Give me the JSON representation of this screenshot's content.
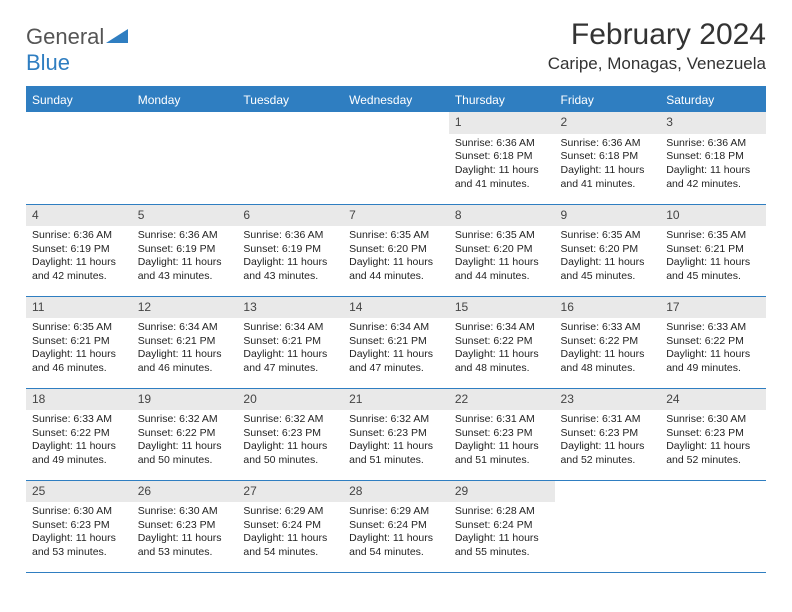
{
  "brand": {
    "part1": "General",
    "part2": "Blue"
  },
  "title": "February 2024",
  "location": "Caripe, Monagas, Venezuela",
  "style": {
    "header_bg": "#2f7ec1",
    "header_fg": "#ffffff",
    "daynum_bg": "#e9e9e9",
    "border_color": "#2f7ec1",
    "page_bg": "#ffffff",
    "body_font_size": 10.5,
    "title_font_size": 30,
    "location_font_size": 17
  },
  "day_headers": [
    "Sunday",
    "Monday",
    "Tuesday",
    "Wednesday",
    "Thursday",
    "Friday",
    "Saturday"
  ],
  "weeks": [
    [
      {
        "n": "",
        "sr": "",
        "ss": "",
        "dl": ""
      },
      {
        "n": "",
        "sr": "",
        "ss": "",
        "dl": ""
      },
      {
        "n": "",
        "sr": "",
        "ss": "",
        "dl": ""
      },
      {
        "n": "",
        "sr": "",
        "ss": "",
        "dl": ""
      },
      {
        "n": "1",
        "sr": "Sunrise: 6:36 AM",
        "ss": "Sunset: 6:18 PM",
        "dl": "Daylight: 11 hours and 41 minutes."
      },
      {
        "n": "2",
        "sr": "Sunrise: 6:36 AM",
        "ss": "Sunset: 6:18 PM",
        "dl": "Daylight: 11 hours and 41 minutes."
      },
      {
        "n": "3",
        "sr": "Sunrise: 6:36 AM",
        "ss": "Sunset: 6:18 PM",
        "dl": "Daylight: 11 hours and 42 minutes."
      }
    ],
    [
      {
        "n": "4",
        "sr": "Sunrise: 6:36 AM",
        "ss": "Sunset: 6:19 PM",
        "dl": "Daylight: 11 hours and 42 minutes."
      },
      {
        "n": "5",
        "sr": "Sunrise: 6:36 AM",
        "ss": "Sunset: 6:19 PM",
        "dl": "Daylight: 11 hours and 43 minutes."
      },
      {
        "n": "6",
        "sr": "Sunrise: 6:36 AM",
        "ss": "Sunset: 6:19 PM",
        "dl": "Daylight: 11 hours and 43 minutes."
      },
      {
        "n": "7",
        "sr": "Sunrise: 6:35 AM",
        "ss": "Sunset: 6:20 PM",
        "dl": "Daylight: 11 hours and 44 minutes."
      },
      {
        "n": "8",
        "sr": "Sunrise: 6:35 AM",
        "ss": "Sunset: 6:20 PM",
        "dl": "Daylight: 11 hours and 44 minutes."
      },
      {
        "n": "9",
        "sr": "Sunrise: 6:35 AM",
        "ss": "Sunset: 6:20 PM",
        "dl": "Daylight: 11 hours and 45 minutes."
      },
      {
        "n": "10",
        "sr": "Sunrise: 6:35 AM",
        "ss": "Sunset: 6:21 PM",
        "dl": "Daylight: 11 hours and 45 minutes."
      }
    ],
    [
      {
        "n": "11",
        "sr": "Sunrise: 6:35 AM",
        "ss": "Sunset: 6:21 PM",
        "dl": "Daylight: 11 hours and 46 minutes."
      },
      {
        "n": "12",
        "sr": "Sunrise: 6:34 AM",
        "ss": "Sunset: 6:21 PM",
        "dl": "Daylight: 11 hours and 46 minutes."
      },
      {
        "n": "13",
        "sr": "Sunrise: 6:34 AM",
        "ss": "Sunset: 6:21 PM",
        "dl": "Daylight: 11 hours and 47 minutes."
      },
      {
        "n": "14",
        "sr": "Sunrise: 6:34 AM",
        "ss": "Sunset: 6:21 PM",
        "dl": "Daylight: 11 hours and 47 minutes."
      },
      {
        "n": "15",
        "sr": "Sunrise: 6:34 AM",
        "ss": "Sunset: 6:22 PM",
        "dl": "Daylight: 11 hours and 48 minutes."
      },
      {
        "n": "16",
        "sr": "Sunrise: 6:33 AM",
        "ss": "Sunset: 6:22 PM",
        "dl": "Daylight: 11 hours and 48 minutes."
      },
      {
        "n": "17",
        "sr": "Sunrise: 6:33 AM",
        "ss": "Sunset: 6:22 PM",
        "dl": "Daylight: 11 hours and 49 minutes."
      }
    ],
    [
      {
        "n": "18",
        "sr": "Sunrise: 6:33 AM",
        "ss": "Sunset: 6:22 PM",
        "dl": "Daylight: 11 hours and 49 minutes."
      },
      {
        "n": "19",
        "sr": "Sunrise: 6:32 AM",
        "ss": "Sunset: 6:22 PM",
        "dl": "Daylight: 11 hours and 50 minutes."
      },
      {
        "n": "20",
        "sr": "Sunrise: 6:32 AM",
        "ss": "Sunset: 6:23 PM",
        "dl": "Daylight: 11 hours and 50 minutes."
      },
      {
        "n": "21",
        "sr": "Sunrise: 6:32 AM",
        "ss": "Sunset: 6:23 PM",
        "dl": "Daylight: 11 hours and 51 minutes."
      },
      {
        "n": "22",
        "sr": "Sunrise: 6:31 AM",
        "ss": "Sunset: 6:23 PM",
        "dl": "Daylight: 11 hours and 51 minutes."
      },
      {
        "n": "23",
        "sr": "Sunrise: 6:31 AM",
        "ss": "Sunset: 6:23 PM",
        "dl": "Daylight: 11 hours and 52 minutes."
      },
      {
        "n": "24",
        "sr": "Sunrise: 6:30 AM",
        "ss": "Sunset: 6:23 PM",
        "dl": "Daylight: 11 hours and 52 minutes."
      }
    ],
    [
      {
        "n": "25",
        "sr": "Sunrise: 6:30 AM",
        "ss": "Sunset: 6:23 PM",
        "dl": "Daylight: 11 hours and 53 minutes."
      },
      {
        "n": "26",
        "sr": "Sunrise: 6:30 AM",
        "ss": "Sunset: 6:23 PM",
        "dl": "Daylight: 11 hours and 53 minutes."
      },
      {
        "n": "27",
        "sr": "Sunrise: 6:29 AM",
        "ss": "Sunset: 6:24 PM",
        "dl": "Daylight: 11 hours and 54 minutes."
      },
      {
        "n": "28",
        "sr": "Sunrise: 6:29 AM",
        "ss": "Sunset: 6:24 PM",
        "dl": "Daylight: 11 hours and 54 minutes."
      },
      {
        "n": "29",
        "sr": "Sunrise: 6:28 AM",
        "ss": "Sunset: 6:24 PM",
        "dl": "Daylight: 11 hours and 55 minutes."
      },
      {
        "n": "",
        "sr": "",
        "ss": "",
        "dl": ""
      },
      {
        "n": "",
        "sr": "",
        "ss": "",
        "dl": ""
      }
    ]
  ]
}
